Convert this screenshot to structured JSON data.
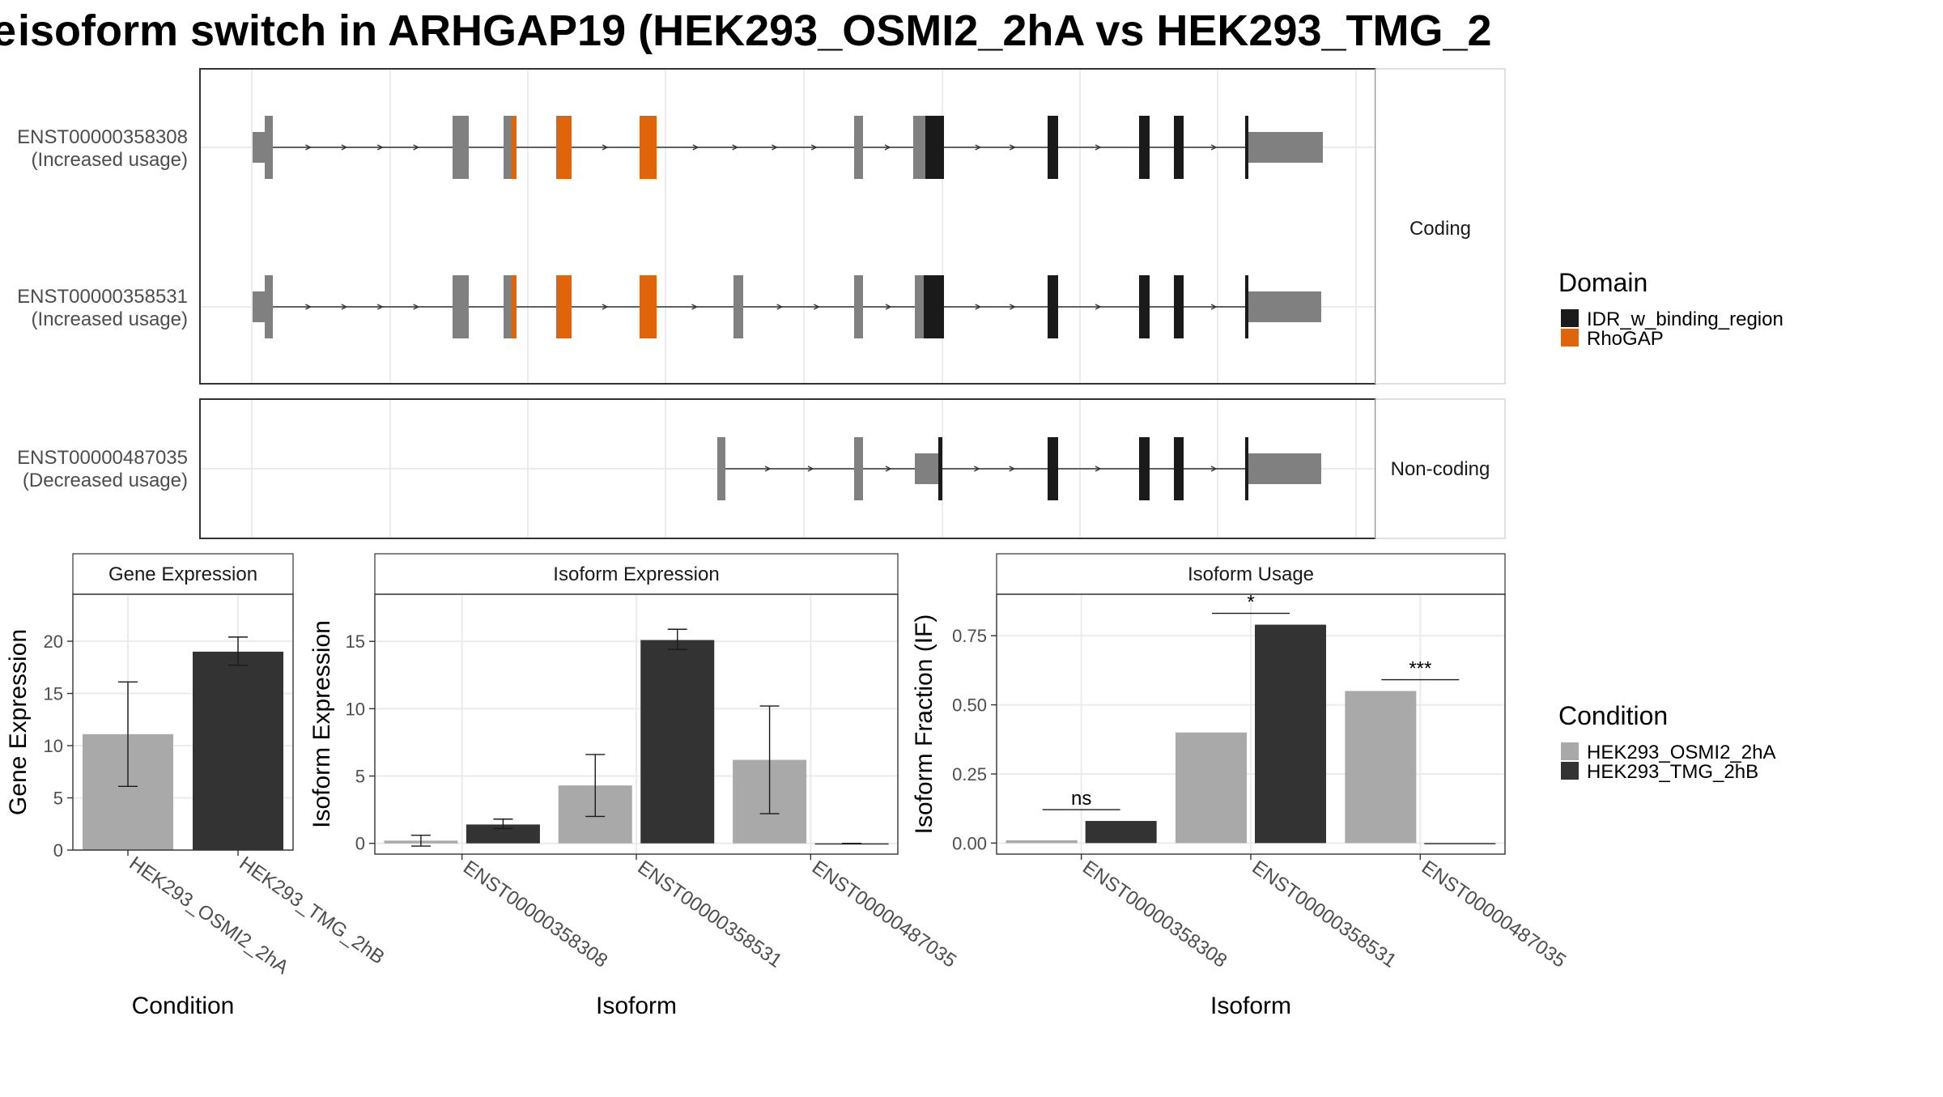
{
  "title": "isoform switch in ARHGAP19 (HEK293_OSMI2_2hA vs HEK293_TMG_2",
  "title_prefix_glyph": "e",
  "colors": {
    "idr": "#1a1a1a",
    "rhogap": "#e0650a",
    "exon": "#808080",
    "intron": "#333333",
    "cond_a": "#a9a9a9",
    "cond_b": "#333333",
    "grid": "#ebebeb",
    "strip_bg": "#ffffff"
  },
  "chart_data": [
    {
      "type": "gene_structure",
      "facets": [
        "Coding",
        "Non-coding"
      ],
      "transcripts": [
        {
          "name": "ENST00000358308",
          "usage": "(Increased usage)",
          "facet": "Coding"
        },
        {
          "name": "ENST00000358531",
          "usage": "(Increased usage)",
          "facet": "Coding"
        },
        {
          "name": "ENST00000487035",
          "usage": "(Decreased usage)",
          "facet": "Non-coding"
        }
      ],
      "legend": {
        "title": "Domain",
        "entries": [
          "IDR_w_binding_region",
          "RhoGAP"
        ]
      }
    },
    {
      "type": "bar",
      "strip": "Gene Expression",
      "xlabel": "Condition",
      "ylabel": "Gene Expression",
      "ylim": [
        0,
        24.5
      ],
      "yticks": [
        0,
        5,
        10,
        15,
        20
      ],
      "categories": [
        "HEK293_OSMI2_2hA",
        "HEK293_TMG_2hB"
      ],
      "series": [
        {
          "values": [
            11.1,
            19.0
          ],
          "err_low": [
            6.1,
            17.7
          ],
          "err_high": [
            16.1,
            20.4
          ]
        }
      ]
    },
    {
      "type": "bar",
      "strip": "Isoform Expression",
      "xlabel": "Isoform",
      "ylabel": "Isoform Expression",
      "ylim": [
        -0.8,
        18.5
      ],
      "yticks": [
        0,
        5,
        10,
        15
      ],
      "categories": [
        "ENST00000358308",
        "ENST00000358531",
        "ENST00000487035"
      ],
      "series": [
        {
          "name": "HEK293_OSMI2_2hA",
          "values": [
            0.2,
            4.3,
            6.2
          ],
          "err_low": [
            -0.2,
            2.0,
            2.2
          ],
          "err_high": [
            0.6,
            6.6,
            10.2
          ]
        },
        {
          "name": "HEK293_TMG_2hB",
          "values": [
            1.4,
            15.1,
            0.0
          ],
          "err_low": [
            1.1,
            14.4,
            0.0
          ],
          "err_high": [
            1.8,
            15.9,
            0.0
          ]
        }
      ]
    },
    {
      "type": "bar",
      "strip": "Isoform Usage",
      "xlabel": "Isoform",
      "ylabel": "Isoform Fraction (IF)",
      "ylim": [
        -0.04,
        0.9
      ],
      "yticks": [
        "0.00",
        "0.25",
        "0.50",
        "0.75"
      ],
      "categories": [
        "ENST00000358308",
        "ENST00000358531",
        "ENST00000487035"
      ],
      "series": [
        {
          "name": "HEK293_OSMI2_2hA",
          "values": [
            0.01,
            0.4,
            0.55
          ]
        },
        {
          "name": "HEK293_TMG_2hB",
          "values": [
            0.08,
            0.79,
            0.0
          ]
        }
      ],
      "significance": [
        "ns",
        "*",
        "***"
      ],
      "legend": {
        "title": "Condition",
        "entries": [
          "HEK293_OSMI2_2hA",
          "HEK293_TMG_2hB"
        ]
      }
    }
  ]
}
